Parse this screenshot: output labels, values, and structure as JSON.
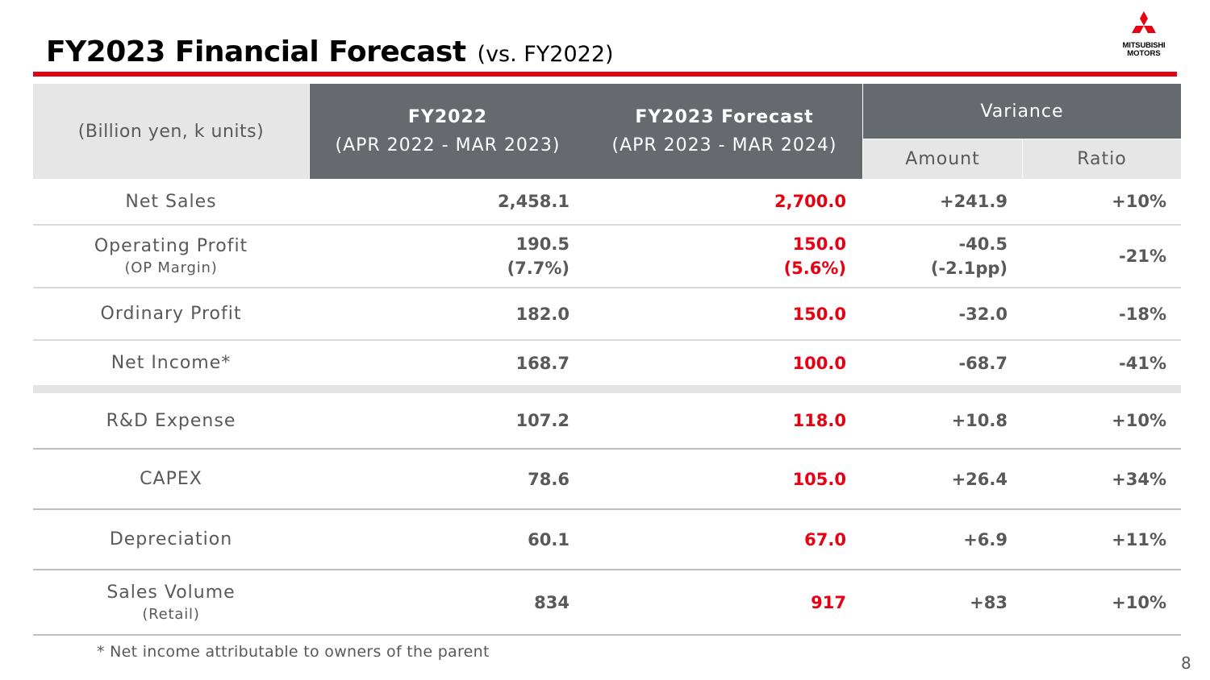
{
  "title": {
    "main": "FY2023 Financial Forecast",
    "sub": "(vs. FY2022)"
  },
  "logo": {
    "line1": "MITSUBISHI",
    "line2": "MOTORS",
    "icon": "three-diamonds-icon",
    "color": "#e60012"
  },
  "table": {
    "unit_label": "(Billion yen, k units)",
    "columns": [
      {
        "title": "FY2022",
        "period": "(APR 2022 - MAR 2023)"
      },
      {
        "title": "FY2023 Forecast",
        "period": "(APR 2023 - MAR 2024)"
      }
    ],
    "variance": {
      "title": "Variance",
      "amount": "Amount",
      "ratio": "Ratio"
    },
    "rows": [
      {
        "label": "Net Sales",
        "fy2022": "2,458.1",
        "fy2023": "2,700.0",
        "amount": "+241.9",
        "ratio": "+10%"
      },
      {
        "label": "Operating Profit",
        "sublabel": "(OP Margin)",
        "fy2022": "190.5",
        "fy2022_sub": "(7.7%)",
        "fy2023": "150.0",
        "fy2023_sub": "(5.6%)",
        "amount": "-40.5",
        "amount_sub": "(-2.1pp)",
        "ratio": "-21%"
      },
      {
        "label": "Ordinary Profit",
        "fy2022": "182.0",
        "fy2023": "150.0",
        "amount": "-32.0",
        "ratio": "-18%"
      },
      {
        "label": "Net Income*",
        "fy2022": "168.7",
        "fy2023": "100.0",
        "amount": "-68.7",
        "ratio": "-41%"
      },
      {
        "label": "R&D Expense",
        "fy2022": "107.2",
        "fy2023": "118.0",
        "amount": "+10.8",
        "ratio": "+10%"
      },
      {
        "label": "CAPEX",
        "fy2022": "78.6",
        "fy2023": "105.0",
        "amount": "+26.4",
        "ratio": "+34%"
      },
      {
        "label": "Depreciation",
        "fy2022": "60.1",
        "fy2023": "67.0",
        "amount": "+6.9",
        "ratio": "+11%"
      },
      {
        "label": "Sales Volume",
        "sublabel": "(Retail)",
        "fy2022": "834",
        "fy2023": "917",
        "amount": "+83",
        "ratio": "+10%"
      }
    ]
  },
  "footnote": "* Net income attributable to owners of the parent",
  "page_number": "8",
  "colors": {
    "accent_red": "#e60012",
    "header_dark": "#666a6e",
    "header_light": "#e6e6e6",
    "text_gray": "#595959"
  }
}
